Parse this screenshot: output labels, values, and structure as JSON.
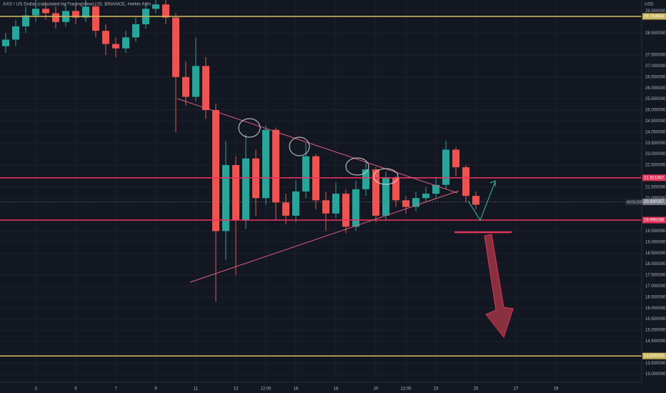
{
  "chart_data": {
    "type": "candlestick",
    "title": "AXS / US Dollar (calculated by TradingView), 15, BINANCE, Heikin Ashi",
    "y_axis_label": "USD",
    "symbol_label": "AXSUSD",
    "up_color": "#26a69a",
    "down_color": "#ef5350",
    "grid": true,
    "x": [
      1.5,
      2,
      2.5,
      3,
      3.5,
      4,
      4.5,
      5,
      5.5,
      6,
      6.5,
      7,
      7.5,
      8,
      8.5,
      9,
      9.5,
      10,
      10.5,
      11,
      11.5,
      12,
      12.5,
      13,
      13.5,
      14,
      14.5,
      15,
      15.5,
      16,
      16.5,
      17,
      17.5,
      18,
      18.5,
      19,
      19.5,
      20,
      20.5,
      21,
      21.5,
      22,
      22.5,
      23,
      23.5,
      24,
      24.5,
      25
    ],
    "open": [
      27.9,
      28.2,
      28.8,
      29.3,
      29.6,
      29.4,
      29.0,
      29.5,
      29.2,
      29.7,
      28.6,
      28.0,
      27.8,
      28.3,
      28.9,
      29.6,
      29.8,
      29.2,
      26.5,
      25.6,
      27.0,
      25.0,
      19.5,
      22.5,
      20.0,
      22.8,
      21.0,
      24.1,
      20.8,
      20.2,
      21.3,
      22.9,
      20.9,
      20.3,
      21.2,
      19.7,
      21.4,
      22.3,
      20.2,
      21.9,
      20.9,
      20.6,
      21.0,
      21.2,
      21.6,
      23.2,
      22.4,
      21.1
    ],
    "high": [
      28.5,
      29.1,
      29.7,
      30.0,
      29.9,
      29.7,
      29.9,
      29.8,
      30.0,
      29.9,
      28.9,
      28.3,
      28.6,
      29.2,
      29.9,
      30.0,
      30.0,
      29.4,
      27.2,
      28.3,
      27.4,
      25.3,
      23.6,
      22.9,
      23.9,
      23.2,
      24.3,
      24.2,
      21.2,
      21.8,
      23.5,
      23.0,
      21.3,
      21.7,
      21.4,
      21.8,
      22.6,
      22.4,
      22.2,
      22.0,
      21.1,
      21.3,
      21.5,
      21.9,
      23.6,
      23.3,
      22.5,
      21.3
    ],
    "low": [
      27.6,
      27.9,
      28.5,
      29.0,
      29.1,
      28.7,
      28.8,
      28.9,
      29.0,
      28.3,
      27.5,
      27.4,
      27.6,
      28.1,
      28.7,
      29.4,
      28.9,
      24.0,
      25.2,
      25.4,
      24.6,
      16.3,
      18.2,
      17.5,
      19.6,
      20.2,
      20.7,
      20.0,
      19.8,
      19.9,
      21.0,
      20.5,
      19.5,
      20.1,
      19.4,
      19.5,
      21.1,
      19.9,
      20.0,
      20.6,
      20.3,
      20.4,
      20.8,
      21.0,
      21.4,
      22.0,
      20.8,
      20.5
    ],
    "close": [
      28.2,
      28.8,
      29.3,
      29.6,
      29.4,
      29.0,
      29.5,
      29.2,
      29.7,
      28.6,
      28.0,
      27.8,
      28.3,
      28.9,
      29.6,
      29.8,
      29.2,
      26.5,
      25.6,
      27.0,
      25.0,
      19.5,
      22.5,
      20.0,
      22.8,
      21.0,
      24.1,
      20.8,
      20.2,
      21.3,
      22.9,
      20.9,
      20.3,
      21.2,
      19.7,
      21.4,
      22.3,
      20.2,
      21.9,
      20.9,
      20.6,
      21.0,
      21.2,
      21.6,
      23.2,
      22.4,
      21.1,
      20.7
    ],
    "xlim": [
      1.214,
      33.286
    ],
    "xticks": [
      3,
      5,
      7,
      9,
      11,
      13,
      {
        "value": 14.5,
        "label": "12:00"
      },
      16,
      18,
      20,
      {
        "value": 21.5,
        "label": "12:00"
      },
      23,
      25,
      27,
      29
    ],
    "ylim": [
      12.63,
      30.0
    ],
    "yticks": [
      {
        "value": 13,
        "label": "13.000000"
      },
      {
        "value": 13.5,
        "label": "13.500000"
      },
      {
        "value": 14.5,
        "label": "14.500000"
      },
      {
        "value": 15,
        "label": "15.000000"
      },
      {
        "value": 15.5,
        "label": "15.500000"
      },
      {
        "value": 16,
        "label": "16.000000"
      },
      {
        "value": 16.5,
        "label": "16.500000"
      },
      {
        "value": 17,
        "label": "17.000000"
      },
      {
        "value": 17.5,
        "label": "17.500000"
      },
      {
        "value": 18,
        "label": "18.000000"
      },
      {
        "value": 18.5,
        "label": "18.500000"
      },
      {
        "value": 19,
        "label": "19.000000"
      },
      {
        "value": 19.5,
        "label": "19.500000"
      },
      {
        "value": 21,
        "label": "21.000000"
      },
      {
        "value": 21.5,
        "label": "21.500000"
      },
      {
        "value": 22.5,
        "label": "22.500000"
      },
      {
        "value": 23,
        "label": "23.000000"
      },
      {
        "value": 23.5,
        "label": "23.500000"
      },
      {
        "value": 24,
        "label": "24.000000"
      },
      {
        "value": 24.5,
        "label": "24.500000"
      },
      {
        "value": 25,
        "label": "25.000000"
      },
      {
        "value": 25.5,
        "label": "25.500000"
      },
      {
        "value": 26,
        "label": "26.000000"
      },
      {
        "value": 26.5,
        "label": "26.500000"
      },
      {
        "value": 27,
        "label": "27.000000"
      },
      {
        "value": 27.5,
        "label": "27.500000"
      },
      {
        "value": 28.5,
        "label": "28.500000"
      },
      {
        "value": 29.5,
        "label": "29.500000"
      }
    ],
    "hlines": [
      {
        "value": 29.2546,
        "label": "29.254600",
        "color": "#c9b458"
      },
      {
        "value": 21.921667,
        "label": "21.921667",
        "color": "#e0325a"
      },
      {
        "value": 19.999289,
        "label": "19.999289",
        "color": "#e0325a"
      },
      {
        "value": 13.826,
        "label": "13.826000",
        "color": "#c9b458"
      },
      {
        "value": 20.830357,
        "label": "20.830357",
        "color": "#787b86"
      }
    ]
  }
}
